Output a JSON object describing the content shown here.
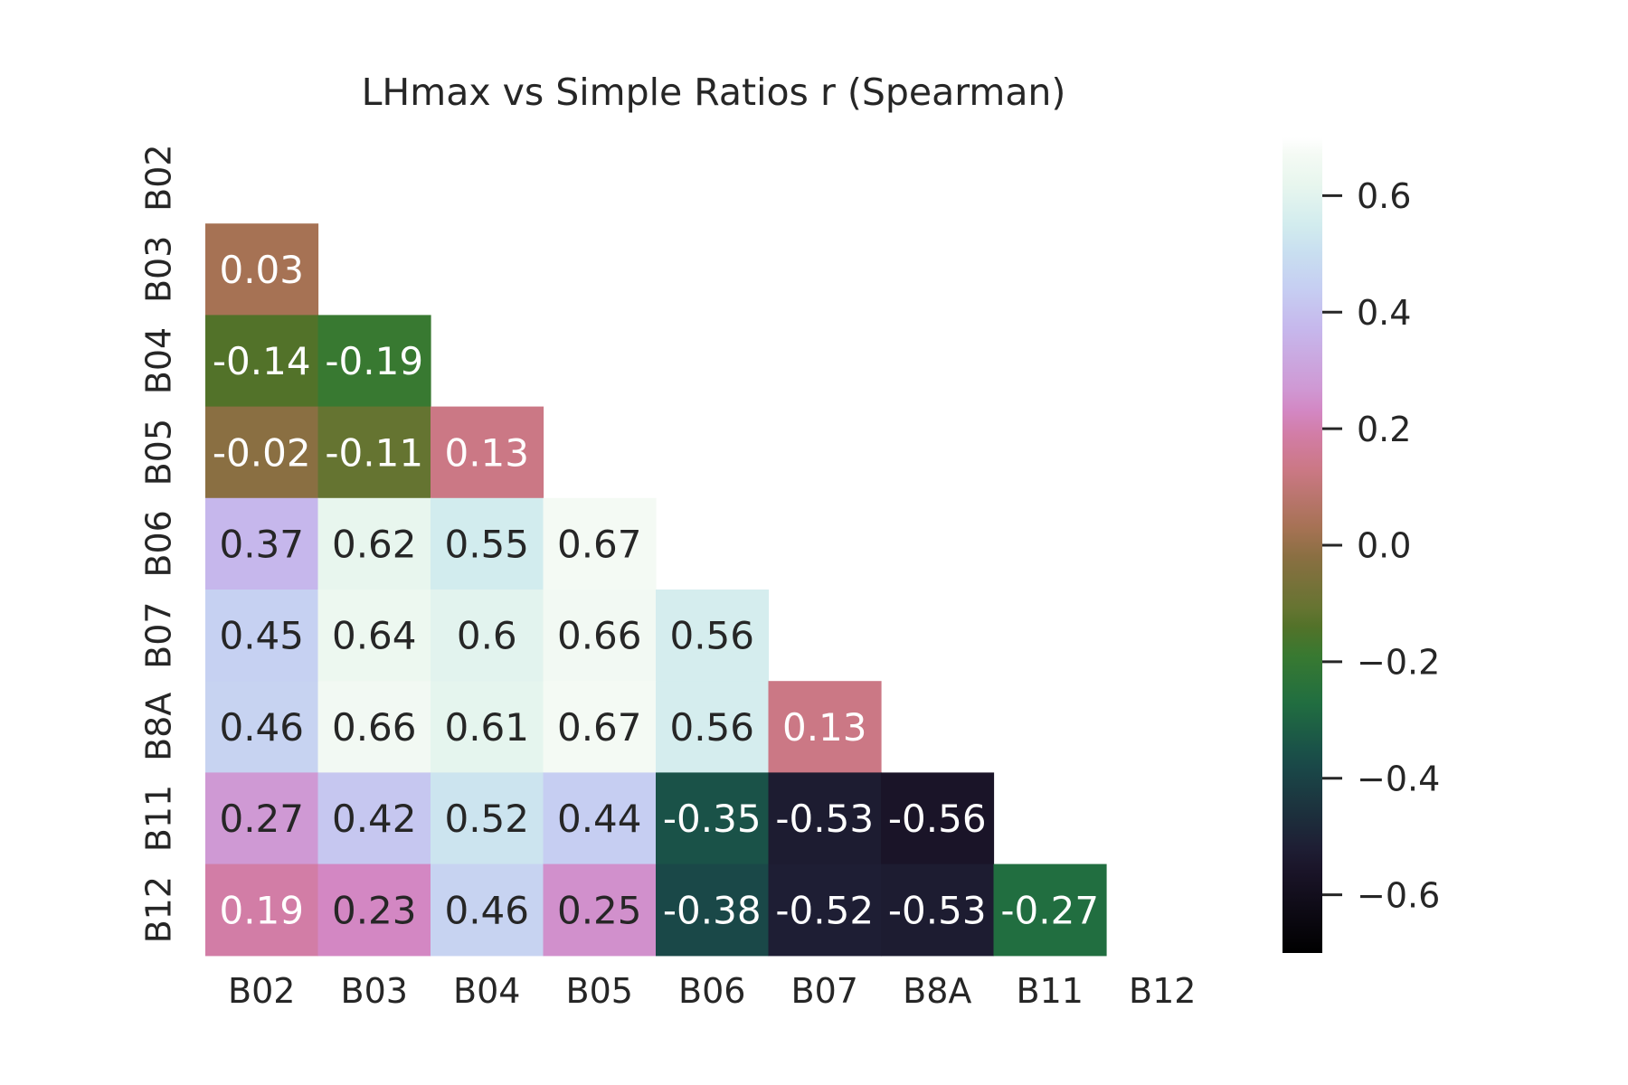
{
  "chart_data": {
    "type": "heatmap",
    "title": "LHmax vs Simple Ratios r (Spearman)",
    "x_categories": [
      "B02",
      "B03",
      "B04",
      "B05",
      "B06",
      "B07",
      "B8A",
      "B11",
      "B12"
    ],
    "y_categories": [
      "B02",
      "B03",
      "B04",
      "B05",
      "B06",
      "B07",
      "B8A",
      "B11",
      "B12"
    ],
    "mask": "upper-triangle-and-diagonal",
    "values": [
      [
        null,
        null,
        null,
        null,
        null,
        null,
        null,
        null,
        null
      ],
      [
        0.03,
        null,
        null,
        null,
        null,
        null,
        null,
        null,
        null
      ],
      [
        -0.14,
        -0.19,
        null,
        null,
        null,
        null,
        null,
        null,
        null
      ],
      [
        -0.02,
        -0.11,
        0.13,
        null,
        null,
        null,
        null,
        null,
        null
      ],
      [
        0.37,
        0.62,
        0.55,
        0.67,
        null,
        null,
        null,
        null,
        null
      ],
      [
        0.45,
        0.64,
        0.6,
        0.66,
        0.56,
        null,
        null,
        null,
        null
      ],
      [
        0.46,
        0.66,
        0.61,
        0.67,
        0.56,
        0.13,
        null,
        null,
        null
      ],
      [
        0.27,
        0.42,
        0.52,
        0.44,
        -0.35,
        -0.53,
        -0.56,
        null,
        null
      ],
      [
        0.19,
        0.23,
        0.46,
        0.25,
        -0.38,
        -0.52,
        -0.53,
        -0.27,
        null
      ]
    ],
    "value_labels": [
      [
        null,
        null,
        null,
        null,
        null,
        null,
        null,
        null,
        null
      ],
      [
        "0.03",
        null,
        null,
        null,
        null,
        null,
        null,
        null,
        null
      ],
      [
        "-0.14",
        "-0.19",
        null,
        null,
        null,
        null,
        null,
        null,
        null
      ],
      [
        "-0.02",
        "-0.11",
        "0.13",
        null,
        null,
        null,
        null,
        null,
        null
      ],
      [
        "0.37",
        "0.62",
        "0.55",
        "0.67",
        null,
        null,
        null,
        null,
        null
      ],
      [
        "0.45",
        "0.64",
        "0.6",
        "0.66",
        "0.56",
        null,
        null,
        null,
        null
      ],
      [
        "0.46",
        "0.66",
        "0.61",
        "0.67",
        "0.56",
        "0.13",
        null,
        null,
        null
      ],
      [
        "0.27",
        "0.42",
        "0.52",
        "0.44",
        "-0.35",
        "-0.53",
        "-0.56",
        null,
        null
      ],
      [
        "0.19",
        "0.23",
        "0.46",
        "0.25",
        "-0.38",
        "-0.52",
        "-0.53",
        "-0.27",
        null
      ]
    ],
    "colormap": "cubehelix",
    "vmin": -0.7,
    "vmax": 0.7,
    "colorbar": {
      "ticks": [
        0.6,
        0.4,
        0.2,
        0.0,
        -0.2,
        -0.4,
        -0.6
      ],
      "tick_labels": [
        "0.6",
        "0.4",
        "0.2",
        "0.0",
        "−0.2",
        "−0.4",
        "−0.6"
      ]
    },
    "grid": false,
    "text_color_dark": "#262626",
    "text_color_light": "#ffffff",
    "label_color": "#262626"
  }
}
